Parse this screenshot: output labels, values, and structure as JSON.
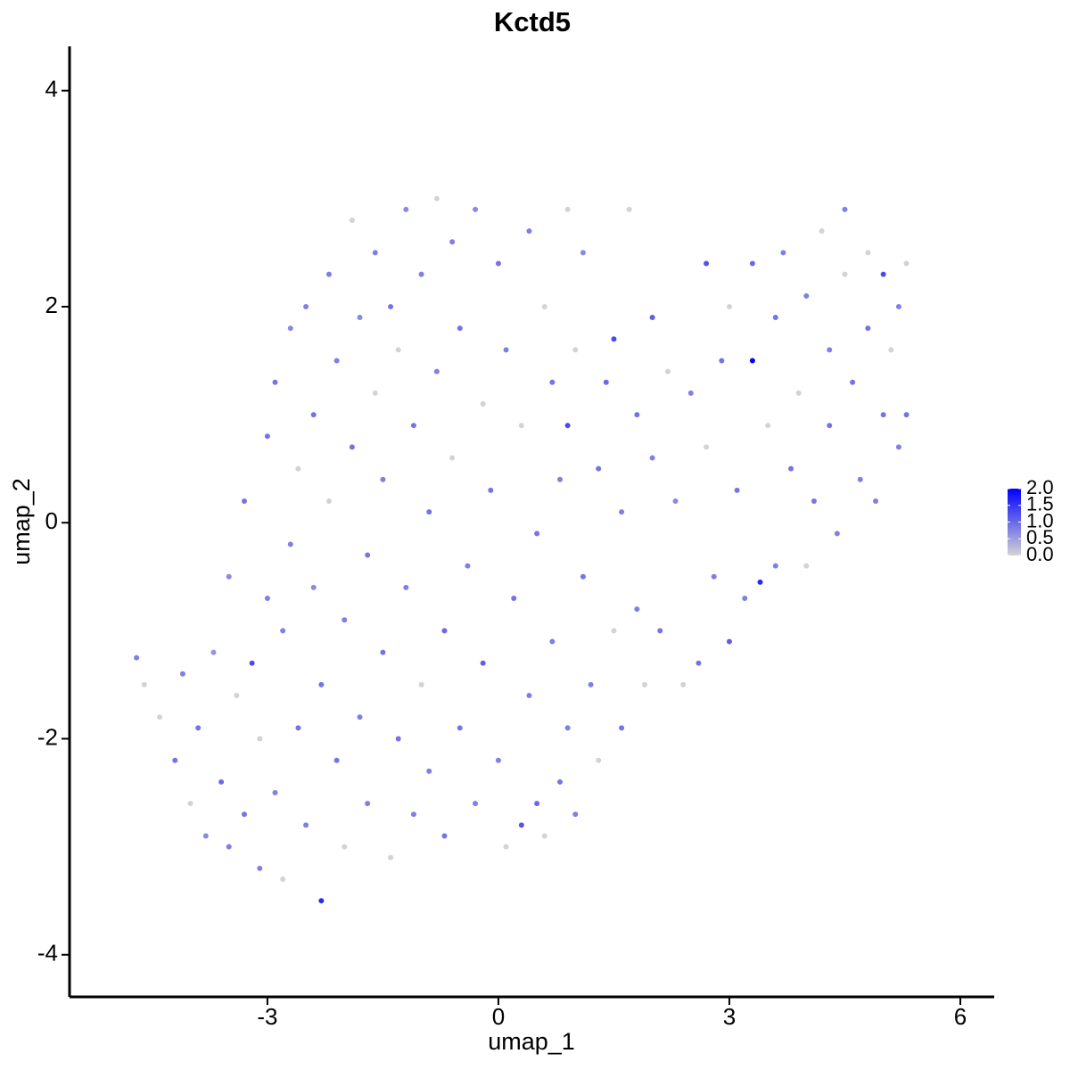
{
  "chart_data": {
    "type": "scatter",
    "title": "Kctd5",
    "x_label": "umap_1",
    "y_label": "umap_2",
    "xlim": [
      -5.57,
      6.44
    ],
    "ylim": [
      -4.39,
      4.41
    ],
    "xticks": [
      -3,
      0,
      3,
      6
    ],
    "yticks": [
      -4,
      -2,
      0,
      2,
      4
    ],
    "colorbar": {
      "lim": [
        0,
        2
      ],
      "colors": [
        "#d3d3d3",
        "#0000ff"
      ],
      "ticks": [
        {
          "value": 0,
          "label": "0.0"
        },
        {
          "value": 0.5,
          "label": "0.5"
        },
        {
          "value": 1,
          "label": "1.0"
        },
        {
          "value": 1.5,
          "label": "1.5"
        },
        {
          "value": 2,
          "label": "2.0"
        }
      ]
    },
    "x": [
      -4.7,
      -4.6,
      -4.4,
      -4.2,
      -4.1,
      -4.0,
      -3.9,
      -3.8,
      -3.7,
      -3.6,
      -3.5,
      -3.5,
      -3.4,
      -3.3,
      -3.3,
      -3.2,
      -3.1,
      -3.1,
      -3.0,
      -3.0,
      -2.9,
      -2.9,
      -2.8,
      -2.8,
      -2.7,
      -2.7,
      -2.6,
      -2.6,
      -2.5,
      -2.5,
      -2.4,
      -2.4,
      -2.3,
      -2.3,
      -2.2,
      -2.2,
      -2.1,
      -2.1,
      -2.0,
      -2.0,
      -1.9,
      -1.9,
      -1.8,
      -1.8,
      -1.7,
      -1.7,
      -1.6,
      -1.6,
      -1.5,
      -1.5,
      -1.4,
      -1.4,
      -1.3,
      -1.3,
      -1.2,
      -1.2,
      -1.1,
      -1.1,
      -1.0,
      -1.0,
      -0.9,
      -0.9,
      -0.8,
      -0.8,
      -0.7,
      -0.7,
      -0.6,
      -0.6,
      -0.5,
      -0.5,
      -0.4,
      -0.3,
      -0.3,
      -0.2,
      -0.2,
      -0.1,
      0,
      0,
      0.1,
      0.1,
      0.2,
      0.3,
      0.3,
      0.4,
      0.4,
      0.5,
      0.5,
      0.6,
      0.6,
      0.7,
      0.7,
      0.8,
      0.8,
      0.9,
      0.9,
      0.9,
      1.0,
      1.0,
      1.1,
      1.1,
      1.2,
      1.3,
      1.3,
      1.4,
      1.5,
      1.5,
      1.6,
      1.6,
      1.7,
      1.8,
      1.8,
      1.9,
      2.0,
      2.0,
      2.1,
      2.2,
      2.3,
      2.4,
      2.5,
      2.6,
      2.7,
      2.7,
      2.8,
      2.9,
      3.0,
      3.0,
      3.1,
      3.2,
      3.3,
      3.3,
      3.4,
      3.5,
      3.6,
      3.6,
      3.7,
      3.8,
      3.9,
      4.0,
      4.0,
      4.1,
      4.2,
      4.3,
      4.3,
      4.4,
      4.5,
      4.5,
      4.6,
      4.7,
      4.8,
      4.8,
      4.9,
      5.0,
      5.0,
      5.1,
      5.2,
      5.2,
      5.3,
      5.3
    ],
    "y": [
      -1.25,
      -1.5,
      -1.8,
      -2.2,
      -1.4,
      -2.6,
      -1.9,
      -2.9,
      -1.2,
      -2.4,
      -3.0,
      -0.5,
      -1.6,
      -2.7,
      0.2,
      -1.3,
      -3.2,
      -2.0,
      -0.7,
      0.8,
      -2.5,
      1.3,
      -1.0,
      -3.3,
      1.8,
      -0.2,
      -1.9,
      0.5,
      2.0,
      -2.8,
      -0.6,
      1.0,
      -3.5,
      -1.5,
      2.3,
      0.2,
      -2.2,
      1.5,
      -0.9,
      -3.0,
      2.8,
      0.7,
      -1.8,
      1.9,
      -2.6,
      -0.3,
      2.5,
      1.2,
      -1.2,
      0.4,
      -3.1,
      2.0,
      -2.0,
      1.6,
      -0.6,
      2.9,
      0.9,
      -2.7,
      -1.5,
      2.3,
      0.1,
      -2.3,
      1.4,
      3.0,
      -1.0,
      -2.9,
      0.6,
      2.6,
      -1.9,
      1.8,
      -0.4,
      2.9,
      -2.6,
      1.1,
      -1.3,
      0.3,
      -2.2,
      2.4,
      -3.0,
      1.6,
      -0.7,
      -2.8,
      0.9,
      2.7,
      -1.6,
      -0.1,
      -2.6,
      2.0,
      -2.9,
      1.3,
      -1.1,
      -2.4,
      0.4,
      2.9,
      -1.9,
      0.9,
      -2.7,
      1.6,
      -0.5,
      2.5,
      -1.5,
      0.5,
      -2.2,
      1.3,
      -1.0,
      1.7,
      -1.9,
      0.1,
      2.9,
      -0.8,
      1.0,
      -1.5,
      0.6,
      1.9,
      -1.0,
      1.4,
      0.2,
      -1.5,
      1.2,
      -1.3,
      2.4,
      0.7,
      -0.5,
      1.5,
      -1.1,
      2.0,
      0.3,
      -0.7,
      1.5,
      2.4,
      -0.55,
      0.9,
      1.9,
      -0.4,
      2.5,
      0.5,
      1.2,
      2.1,
      -0.4,
      0.2,
      2.7,
      1.6,
      0.9,
      -0.1,
      2.9,
      2.3,
      1.3,
      0.4,
      2.5,
      1.8,
      0.2,
      2.3,
      1.0,
      1.6,
      2.0,
      0.7,
      2.4,
      1.0
    ],
    "values": [
      0.8,
      0,
      0,
      0.9,
      0.8,
      0,
      0.9,
      0.7,
      0.6,
      1.0,
      0.8,
      0.7,
      0,
      0.9,
      0.9,
      1.3,
      0.8,
      0,
      0.8,
      0.9,
      0.8,
      0.9,
      0.8,
      0,
      0.7,
      0.8,
      0.9,
      0,
      0.8,
      0.8,
      0.7,
      0.9,
      1.6,
      0.9,
      0.8,
      0,
      0.9,
      0.8,
      0.8,
      0,
      0,
      0.9,
      0.8,
      0.7,
      0.8,
      0.9,
      0.8,
      0,
      0.9,
      0.8,
      0,
      0.9,
      0.9,
      0,
      0.8,
      0.7,
      0.9,
      0.8,
      0,
      0.8,
      0.9,
      0.8,
      0.8,
      0,
      1.0,
      0.9,
      0,
      0.8,
      0.9,
      0.9,
      0.8,
      0.7,
      0.8,
      0,
      1.1,
      0.9,
      0.8,
      0.9,
      0,
      0.8,
      0.9,
      1.2,
      0,
      0.8,
      0.8,
      0.9,
      1.0,
      0,
      0,
      0.9,
      0.8,
      0.9,
      0.8,
      0,
      0.8,
      1.3,
      0.8,
      0,
      0.9,
      0.7,
      0.8,
      0.9,
      0,
      1.0,
      0,
      1.3,
      0.9,
      0.8,
      0,
      0.8,
      0.9,
      0,
      0.8,
      1.1,
      0.9,
      0,
      0.7,
      0,
      0.8,
      0.9,
      1.2,
      0,
      0.8,
      0.9,
      1.1,
      0,
      0.9,
      0.8,
      2.0,
      1.0,
      1.6,
      0,
      0.9,
      0.8,
      0.8,
      0.9,
      0,
      0.8,
      0,
      0.9,
      0,
      0.8,
      0.9,
      0.8,
      0.8,
      0,
      0.9,
      0.8,
      0,
      0.9,
      0.8,
      1.3,
      0.9,
      0,
      0.8,
      0.8,
      0,
      0.9
    ]
  }
}
